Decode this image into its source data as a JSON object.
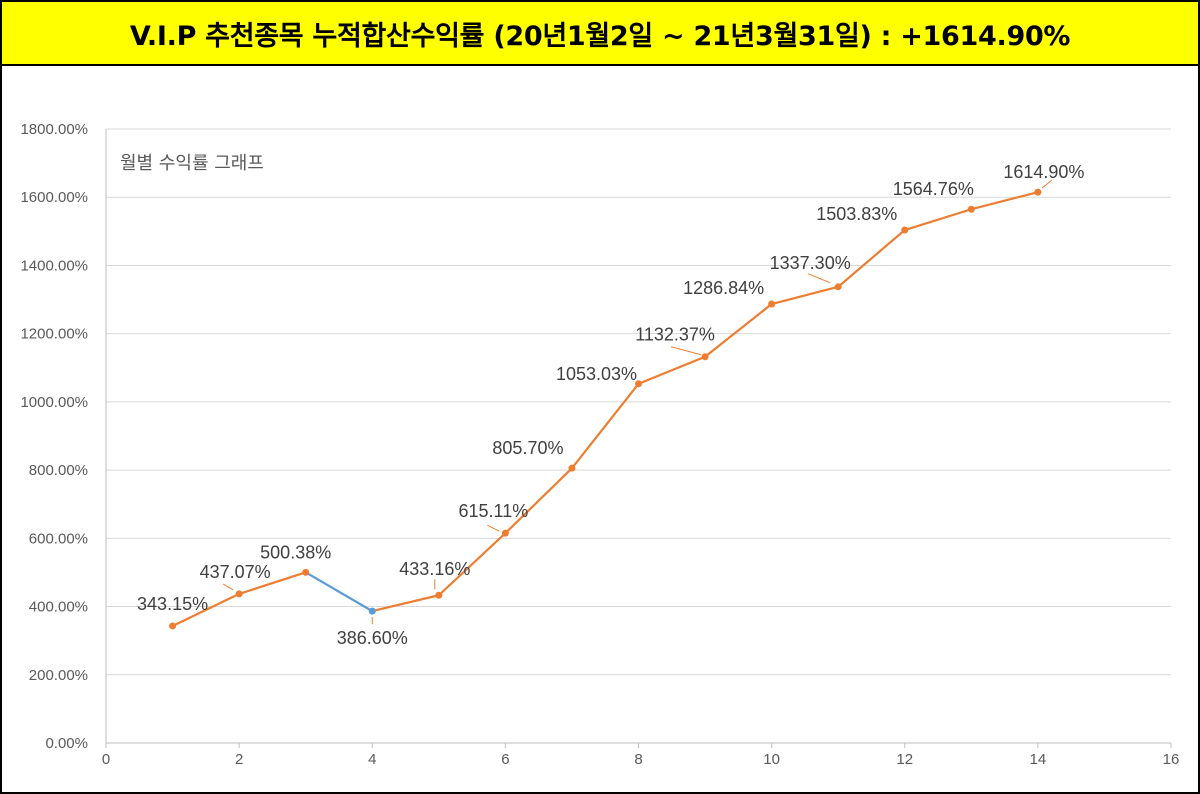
{
  "header": {
    "title": "V.I.P 추천종목 누적합산수익률 (20년1월2일 ~ 21년3월31일) : +1614.90%"
  },
  "chart_data": {
    "type": "line",
    "subtitle": "월별 수익률 그래프",
    "xlim": [
      0,
      16
    ],
    "ylim": [
      0,
      1800
    ],
    "x_ticks": [
      "0",
      "2",
      "4",
      "6",
      "8",
      "10",
      "12",
      "14",
      "16"
    ],
    "y_ticks": [
      "0.00%",
      "200.00%",
      "400.00%",
      "600.00%",
      "800.00%",
      "1000.00%",
      "1200.00%",
      "1400.00%",
      "1600.00%",
      "1800.00%"
    ],
    "grid": true,
    "colors": {
      "line": "#ed7d31",
      "decline_segment": "#5b9bd5",
      "grid": "#d9d9d9",
      "axis": "#bfbfbf"
    },
    "points": [
      {
        "x": 1,
        "y": 343.15,
        "label": "343.15%"
      },
      {
        "x": 2,
        "y": 437.07,
        "label": "437.07%"
      },
      {
        "x": 3,
        "y": 500.38,
        "label": "500.38%"
      },
      {
        "x": 4,
        "y": 386.6,
        "label": "386.60%"
      },
      {
        "x": 5,
        "y": 433.16,
        "label": "433.16%"
      },
      {
        "x": 6,
        "y": 615.11,
        "label": "615.11%"
      },
      {
        "x": 7,
        "y": 805.7,
        "label": "805.70%"
      },
      {
        "x": 8,
        "y": 1053.03,
        "label": "1053.03%"
      },
      {
        "x": 9,
        "y": 1132.37,
        "label": "1132.37%"
      },
      {
        "x": 10,
        "y": 1286.84,
        "label": "1286.84%"
      },
      {
        "x": 11,
        "y": 1337.3,
        "label": "1337.30%"
      },
      {
        "x": 12,
        "y": 1503.83,
        "label": "1503.83%"
      },
      {
        "x": 13,
        "y": 1564.76,
        "label": "1564.76%"
      },
      {
        "x": 14,
        "y": 1614.9,
        "label": "1614.90%"
      }
    ]
  }
}
